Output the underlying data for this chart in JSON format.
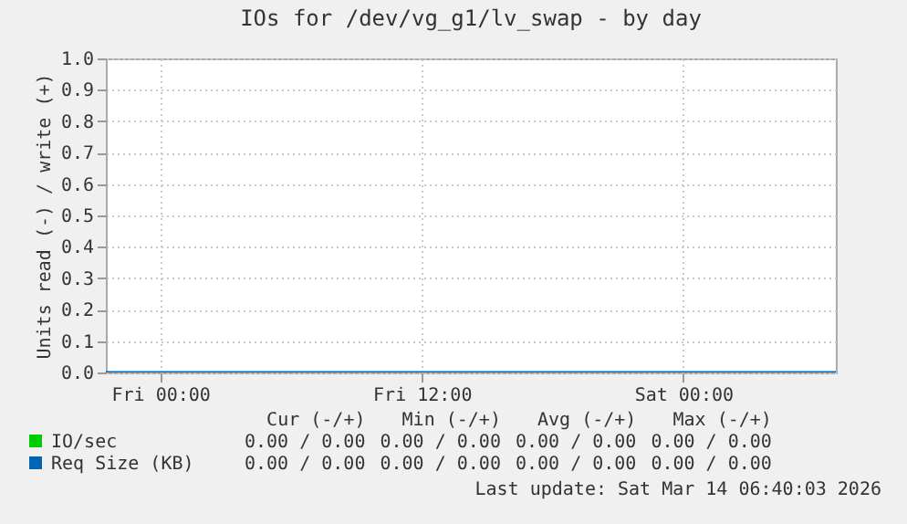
{
  "chart_data": {
    "type": "line",
    "title": "IOs for /dev/vg_g1/lv_swap - by day",
    "ylabel": "Units read (-) / write (+)",
    "x": [
      "2026-03-12T21:30",
      "2026-03-13T06:00",
      "2026-03-13T12:00",
      "2026-03-13T18:00",
      "2026-03-14T00:00",
      "2026-03-14T07:00"
    ],
    "series": [
      {
        "name": "IO/sec",
        "color": "#00cc00",
        "values": [
          null,
          null,
          null,
          null,
          null,
          null
        ]
      },
      {
        "name": "Req Size (KB)",
        "color": "#0066b3",
        "values": [
          0,
          0,
          0,
          0,
          0,
          0
        ]
      }
    ],
    "xlim": [
      "2026-03-12T21:30",
      "2026-03-14T07:00"
    ],
    "xticks": [
      {
        "value": "2026-03-13T00:00",
        "label": "Fri 00:00"
      },
      {
        "value": "2026-03-13T12:00",
        "label": "Fri 12:00"
      },
      {
        "value": "2026-03-14T00:00",
        "label": "Sat 00:00"
      }
    ],
    "ylim": [
      0,
      1
    ],
    "yticks": [
      {
        "value": 0,
        "label": "0.0"
      },
      {
        "value": 0.1,
        "label": "0.1"
      },
      {
        "value": 0.2,
        "label": "0.2"
      },
      {
        "value": 0.3,
        "label": "0.3"
      },
      {
        "value": 0.4,
        "label": "0.4"
      },
      {
        "value": 0.5,
        "label": "0.5"
      },
      {
        "value": 0.6,
        "label": "0.6"
      },
      {
        "value": 0.7,
        "label": "0.7"
      },
      {
        "value": 0.8,
        "label": "0.8"
      },
      {
        "value": 0.9,
        "label": "0.9"
      },
      {
        "value": 1,
        "label": "1.0"
      }
    ],
    "grid": true,
    "legend": "bottom",
    "marker": "none",
    "line_style": "solid",
    "annotations": [
      "Cur (-/+)",
      "Min (-/+)",
      "Avg (-/+)",
      "Max (-/+)",
      "0.00 / 0.00",
      "0.00 / 0.00",
      "0.00 / 0.00",
      "0.00 / 0.00",
      "0.00 / 0.00",
      "0.00 / 0.00",
      "0.00 / 0.00",
      "0.00 / 0.00",
      "Last update: Sat Mar 14 06:40:03 2026"
    ]
  }
}
